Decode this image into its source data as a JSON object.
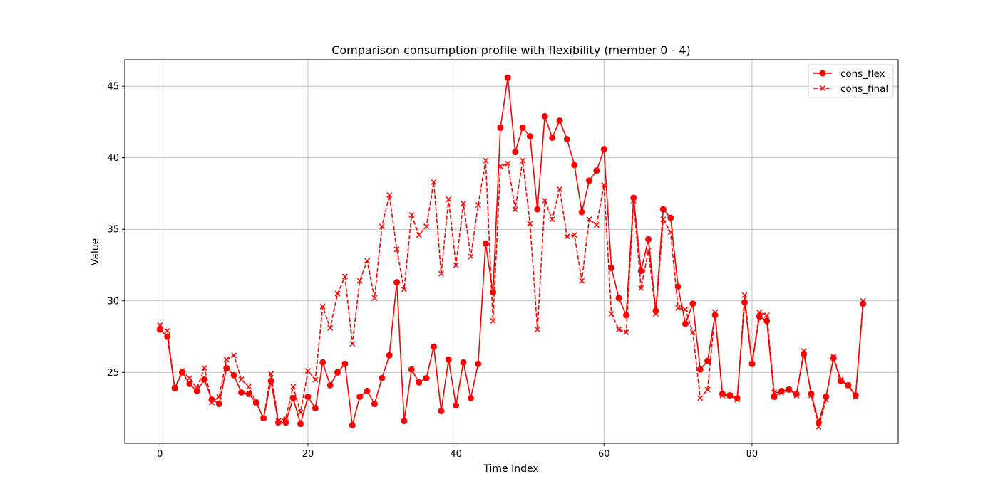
{
  "chart_data": {
    "type": "line",
    "title": "Comparison consumption profile with flexibility (member 0 - 4)",
    "xlabel": "Time Index",
    "ylabel": "Value",
    "xlim": [
      -4.75,
      99.75
    ],
    "ylim": [
      20.04,
      46.85
    ],
    "xticks": [
      0,
      20,
      40,
      60,
      80
    ],
    "yticks": [
      25,
      30,
      35,
      40,
      45
    ],
    "grid": true,
    "legend_position": "top-right",
    "x": [
      0,
      1,
      2,
      3,
      4,
      5,
      6,
      7,
      8,
      9,
      10,
      11,
      12,
      13,
      14,
      15,
      16,
      17,
      18,
      19,
      20,
      21,
      22,
      23,
      24,
      25,
      26,
      27,
      28,
      29,
      30,
      31,
      32,
      33,
      34,
      35,
      36,
      37,
      38,
      39,
      40,
      41,
      42,
      43,
      44,
      45,
      46,
      47,
      48,
      49,
      50,
      51,
      52,
      53,
      54,
      55,
      56,
      57,
      58,
      59,
      60,
      61,
      62,
      63,
      64,
      65,
      66,
      67,
      68,
      69,
      70,
      71,
      72,
      73,
      74,
      75,
      76,
      77,
      78,
      79,
      80,
      81,
      82,
      83,
      84,
      85,
      86,
      87,
      88,
      89,
      90,
      91,
      92,
      93,
      94,
      95
    ],
    "series": [
      {
        "name": "cons_flex",
        "color": "#ff0000",
        "line_style": "solid",
        "marker": "circle",
        "values": [
          28.0,
          27.5,
          23.9,
          25.0,
          24.2,
          23.7,
          24.5,
          23.1,
          22.8,
          25.3,
          24.8,
          23.6,
          23.5,
          22.9,
          21.8,
          24.4,
          21.5,
          21.5,
          23.2,
          21.4,
          23.3,
          22.5,
          25.7,
          24.1,
          25.0,
          25.6,
          21.3,
          23.3,
          23.7,
          22.8,
          24.6,
          26.2,
          31.3,
          21.6,
          25.2,
          24.3,
          24.6,
          26.8,
          22.3,
          25.9,
          22.7,
          25.7,
          23.2,
          25.6,
          34.0,
          30.6,
          42.1,
          45.6,
          40.4,
          42.1,
          41.5,
          36.4,
          42.9,
          41.4,
          42.6,
          41.3,
          39.5,
          36.2,
          38.4,
          39.1,
          40.6,
          32.3,
          30.2,
          29.0,
          37.2,
          32.1,
          34.3,
          29.3,
          36.4,
          35.8,
          31.0,
          28.4,
          29.8,
          25.2,
          25.8,
          29.0,
          23.5,
          23.4,
          23.2,
          29.9,
          25.6,
          28.9,
          28.6,
          23.3,
          23.7,
          23.8,
          23.5,
          26.3,
          23.5,
          21.5,
          23.3,
          26.0,
          24.4,
          24.1,
          23.4,
          29.8
        ]
      },
      {
        "name": "cons_final",
        "color": "#ff0000",
        "line_style": "dashed",
        "marker": "x",
        "values": [
          28.3,
          27.9,
          23.9,
          25.1,
          24.6,
          23.9,
          25.3,
          22.9,
          23.3,
          25.9,
          26.2,
          24.5,
          24.0,
          22.9,
          21.8,
          24.9,
          21.6,
          21.8,
          24.0,
          22.2,
          25.1,
          24.5,
          29.6,
          28.1,
          30.5,
          31.7,
          27.0,
          31.4,
          32.8,
          30.2,
          35.2,
          37.4,
          33.6,
          30.8,
          36.0,
          34.6,
          35.2,
          38.3,
          31.9,
          37.1,
          32.5,
          36.8,
          33.1,
          36.7,
          39.8,
          28.6,
          39.4,
          39.6,
          36.4,
          39.8,
          35.4,
          28.0,
          37.0,
          35.7,
          37.8,
          34.5,
          34.6,
          31.4,
          35.7,
          35.3,
          38.1,
          29.1,
          28.0,
          27.8,
          37.0,
          30.9,
          33.5,
          29.1,
          35.7,
          34.8,
          29.5,
          29.4,
          27.8,
          23.2,
          23.8,
          29.2,
          23.4,
          23.4,
          23.1,
          30.4,
          25.6,
          29.2,
          29.0,
          23.6,
          23.6,
          23.8,
          23.4,
          26.5,
          23.4,
          21.2,
          23.1,
          26.1,
          24.5,
          24.1,
          23.3,
          30.0
        ]
      }
    ]
  }
}
